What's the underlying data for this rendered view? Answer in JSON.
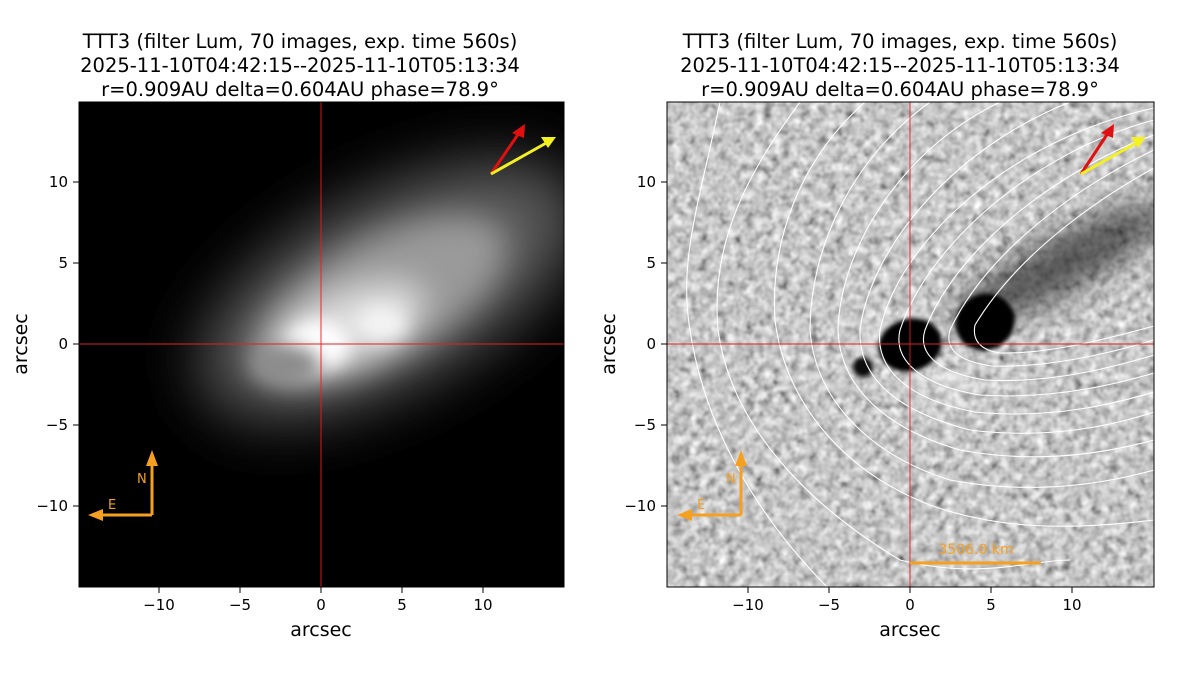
{
  "panels": [
    {
      "id": "left",
      "title_line1": "TTT3 (filter Lum, 70 images, exp. time 560s)",
      "title_line2": "2025-11-10T04:42:15--2025-11-10T05:13:34",
      "title_line3": "r=0.909AU delta=0.604AU phase=78.9°",
      "xlabel": "arcsec",
      "ylabel": "arcsec",
      "xticks": [
        "−10",
        "−5",
        "0",
        "5",
        "10"
      ],
      "yticks": [
        "10",
        "5",
        "0",
        "−5",
        "−10"
      ],
      "compass": {
        "north": "N",
        "east": "E"
      },
      "image": "stacked luminance image of comet with tail toward upper right"
    },
    {
      "id": "right",
      "title_line1": "TTT3 (filter Lum, 70 images, exp. time 560s)",
      "title_line2": "2025-11-10T04:42:15--2025-11-10T05:13:34",
      "title_line3": "r=0.909AU delta=0.604AU phase=78.9°",
      "xlabel": "arcsec",
      "ylabel": "arcsec",
      "xticks": [
        "−10",
        "−5",
        "0",
        "5",
        "10"
      ],
      "yticks": [
        "10",
        "5",
        "0",
        "−5",
        "−10"
      ],
      "compass": {
        "north": "N",
        "east": "E"
      },
      "scalebar_label": "3506.0 km",
      "image": "enhanced grayscale image with white isophote contours"
    }
  ],
  "colors": {
    "crosshair": "#e02020",
    "compass": "#f5a020",
    "sun_arrow": "#e01010",
    "velocity_arrow": "#f5f020",
    "contour": "#ffffff"
  }
}
